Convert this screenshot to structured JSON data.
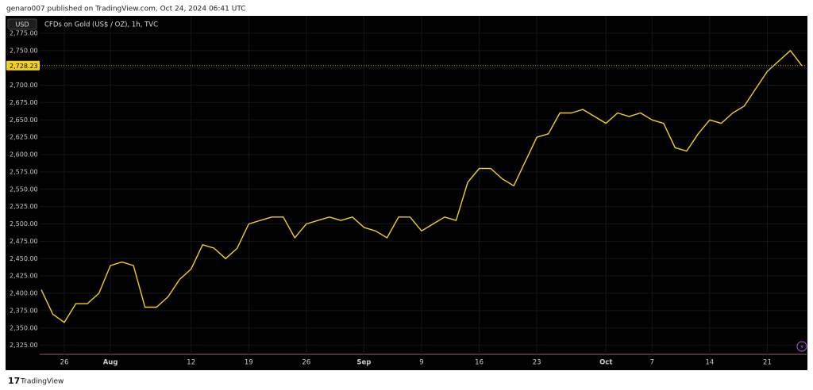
{
  "header": "genaro007 published on TradingView.com, Oct 24, 2024 06:41 UTC",
  "footer": "TradingView",
  "chart_data": {
    "type": "line",
    "title": "CFDs on Gold (US$ / OZ), 1h, TVC",
    "currency": "USD",
    "categories": [
      null,
      null,
      "26",
      null,
      null,
      null,
      "Aug",
      null,
      null,
      null,
      null,
      null,
      null,
      "12",
      null,
      null,
      null,
      null,
      "19",
      null,
      null,
      null,
      null,
      "26",
      null,
      null,
      null,
      null,
      "Sep",
      null,
      null,
      null,
      null,
      "9",
      null,
      null,
      null,
      null,
      "16",
      null,
      null,
      null,
      null,
      "23",
      null,
      null,
      null,
      null,
      null,
      "Oct",
      null,
      null,
      null,
      "7",
      null,
      null,
      null,
      null,
      "14",
      null,
      null,
      null,
      null,
      "21",
      null,
      null,
      null
    ],
    "series": [
      {
        "name": "CFDs on Gold",
        "color": "#f2d216",
        "values": [
          2405,
          2370,
          2358,
          2385,
          2385,
          2400,
          2440,
          2445,
          2440,
          2380,
          2380,
          2395,
          2420,
          2435,
          2470,
          2465,
          2450,
          2465,
          2500,
          2505,
          2510,
          2510,
          2480,
          2500,
          2505,
          2510,
          2505,
          2510,
          2495,
          2490,
          2480,
          2510,
          2510,
          2490,
          2500,
          2510,
          2505,
          2560,
          2580,
          2580,
          2565,
          2555,
          2590,
          2625,
          2630,
          2660,
          2660,
          2665,
          2655,
          2645,
          2660,
          2655,
          2660,
          2650,
          2645,
          2610,
          2605,
          2630,
          2650,
          2645,
          2660,
          2670,
          2695,
          2720,
          2735,
          2750,
          2728.23
        ]
      }
    ],
    "last_price": {
      "value": 2728.23,
      "label": "2,728.23"
    },
    "ylim": [
      2312,
      2800
    ],
    "yticks": [
      {
        "value": 2325,
        "label": "2,325.00"
      },
      {
        "value": 2350,
        "label": "2,350.00"
      },
      {
        "value": 2375,
        "label": "2,375.00"
      },
      {
        "value": 2400,
        "label": "2,400.00"
      },
      {
        "value": 2425,
        "label": "2,425.00"
      },
      {
        "value": 2450,
        "label": "2,450.00"
      },
      {
        "value": 2475,
        "label": "2,475.00"
      },
      {
        "value": 2500,
        "label": "2,500.00"
      },
      {
        "value": 2525,
        "label": "2,525.00"
      },
      {
        "value": 2550,
        "label": "2,550.00"
      },
      {
        "value": 2575,
        "label": "2,575.00"
      },
      {
        "value": 2600,
        "label": "2,600.00"
      },
      {
        "value": 2625,
        "label": "2,625.00"
      },
      {
        "value": 2650,
        "label": "2,650.00"
      },
      {
        "value": 2675,
        "label": "2,675.00"
      },
      {
        "value": 2700,
        "label": "2,700.00"
      },
      {
        "value": 2725,
        "label": "2,725.00"
      },
      {
        "value": 2750,
        "label": "2,750.00"
      },
      {
        "value": 2775,
        "label": "2,775.00"
      }
    ],
    "grid": true
  }
}
